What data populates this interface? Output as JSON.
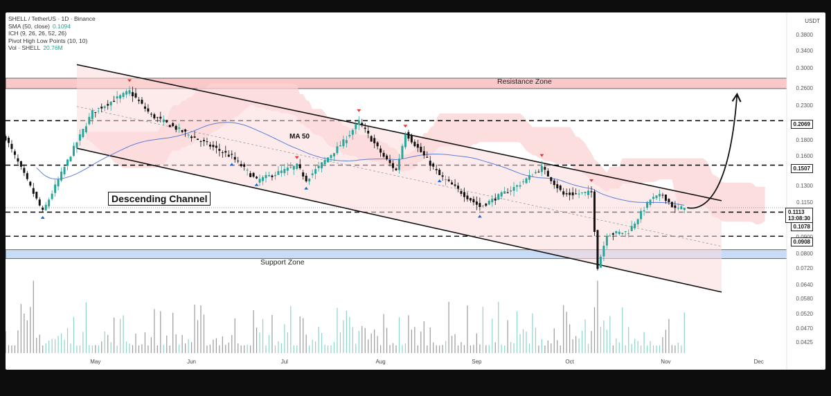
{
  "legend": {
    "symbol_line": "SHELL / TetherUS · 1D · Binance",
    "sma_label": "SMA (50, close)",
    "sma_value": "0.1094",
    "ich_label": "ICH (9, 26, 26, 52, 26)",
    "pivot_label": "Pivot High Low Points (10, 10)",
    "vol_label": "Vol · SHELL",
    "vol_value": "20.76M"
  },
  "currency": "USDT",
  "annotations": {
    "channel": "Descending Channel",
    "ma": "MA 50",
    "resistance": "Resistance Zone",
    "support": "Support Zone"
  },
  "price_tags": {
    "p2069": "0.2069",
    "p1507": "0.1507",
    "current_price": "0.1113",
    "countdown": "13:08:30",
    "p1078": "0.1078",
    "p0908": "0.0908"
  },
  "colors": {
    "up": "#26a69a",
    "down": "#111111",
    "ma": "#5b7fd6",
    "resistance_fill": "#f9c8c8",
    "support_fill": "#c9dcf6",
    "cloud": "#fbd3d3",
    "pivot_high": "#e53935",
    "pivot_low": "#1e66d0"
  },
  "chart_data": {
    "type": "candlestick",
    "title": "SHELL / TetherUS · 1D · Binance",
    "y_scale": "log",
    "ylim": [
      0.0395,
      0.43
    ],
    "y_ticks": [
      0.38,
      0.34,
      0.3,
      0.26,
      0.23,
      0.2,
      0.18,
      0.16,
      0.145,
      0.13,
      0.115,
      0.1,
      0.09,
      0.08,
      0.072,
      0.064,
      0.058,
      0.052,
      0.047,
      0.0425
    ],
    "x_ticks": [
      {
        "label": "May",
        "date": "2025-05-01"
      },
      {
        "label": "Jun",
        "date": "2025-06-01"
      },
      {
        "label": "Jul",
        "date": "2025-07-01"
      },
      {
        "label": "Aug",
        "date": "2025-08-01"
      },
      {
        "label": "Sep",
        "date": "2025-09-01"
      },
      {
        "label": "Oct",
        "date": "2025-10-01"
      },
      {
        "label": "Nov",
        "date": "2025-11-01"
      },
      {
        "label": "Dec",
        "date": "2025-12-01"
      }
    ],
    "x_range": [
      "2025-04-02",
      "2025-12-10"
    ],
    "key_points": [
      {
        "date": "2025-04-02",
        "close": 0.183
      },
      {
        "date": "2025-04-14",
        "close": 0.108
      },
      {
        "date": "2025-04-24",
        "close": 0.17
      },
      {
        "date": "2025-04-30",
        "close": 0.22
      },
      {
        "date": "2025-05-12",
        "close": 0.255
      },
      {
        "date": "2025-05-19",
        "close": 0.215
      },
      {
        "date": "2025-06-01",
        "close": 0.185
      },
      {
        "date": "2025-06-14",
        "close": 0.16
      },
      {
        "date": "2025-06-22",
        "close": 0.135
      },
      {
        "date": "2025-07-05",
        "close": 0.15
      },
      {
        "date": "2025-07-08",
        "close": 0.136
      },
      {
        "date": "2025-07-20",
        "close": 0.178
      },
      {
        "date": "2025-07-25",
        "close": 0.205
      },
      {
        "date": "2025-08-02",
        "close": 0.16
      },
      {
        "date": "2025-08-06",
        "close": 0.145
      },
      {
        "date": "2025-08-09",
        "close": 0.19
      },
      {
        "date": "2025-08-20",
        "close": 0.14
      },
      {
        "date": "2025-09-02",
        "close": 0.112
      },
      {
        "date": "2025-09-14",
        "close": 0.13
      },
      {
        "date": "2025-09-22",
        "close": 0.148
      },
      {
        "date": "2025-09-29",
        "close": 0.122
      },
      {
        "date": "2025-10-08",
        "close": 0.124
      },
      {
        "date": "2025-10-10",
        "close": 0.073
      },
      {
        "date": "2025-10-13",
        "close": 0.092
      },
      {
        "date": "2025-10-20",
        "close": 0.094
      },
      {
        "date": "2025-10-27",
        "close": 0.118
      },
      {
        "date": "2025-10-31",
        "close": 0.122
      },
      {
        "date": "2025-11-04",
        "close": 0.11
      },
      {
        "date": "2025-11-07",
        "close": 0.1113
      }
    ],
    "horizontal_levels": [
      0.2069,
      0.1507,
      0.1078,
      0.0908
    ],
    "resistance_zone": [
      0.26,
      0.28
    ],
    "support_zone": [
      0.0775,
      0.0825
    ],
    "channel_upper": [
      {
        "date": "2025-05-01",
        "price": 0.3
      },
      {
        "date": "2025-11-19",
        "price": 0.117
      }
    ],
    "channel_lower": [
      {
        "date": "2025-05-01",
        "price": 0.165
      },
      {
        "date": "2025-11-19",
        "price": 0.061
      }
    ],
    "projection": {
      "from": {
        "date": "2025-11-07",
        "price": 0.1113
      },
      "to": {
        "date": "2025-11-24",
        "price": 0.25
      }
    },
    "volume_scale_top": 1.0
  }
}
